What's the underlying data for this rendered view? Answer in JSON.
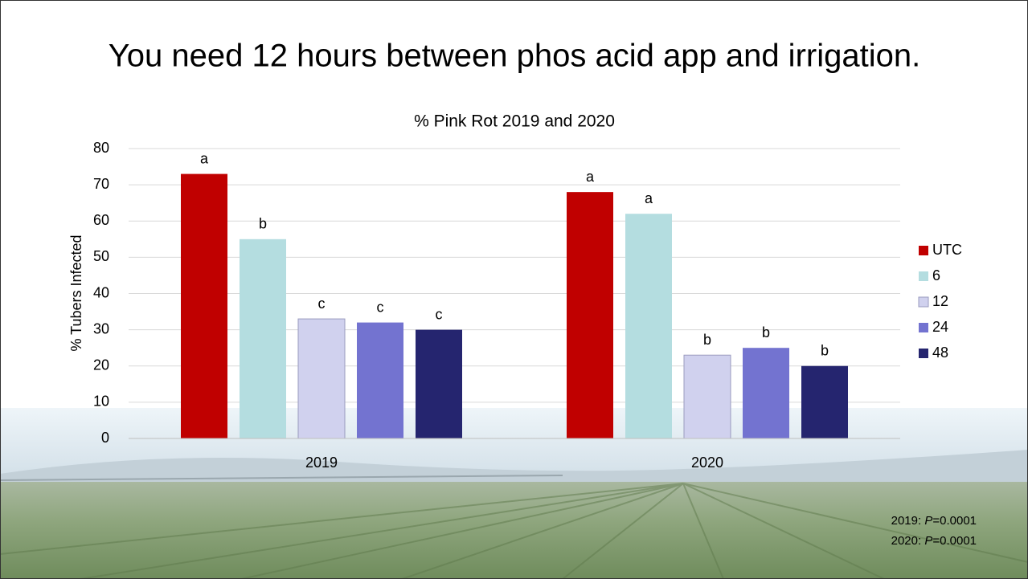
{
  "slide_title": "You need 12 hours between phos acid app and irrigation.",
  "chart_data": {
    "type": "bar",
    "title": "% Pink Rot 2019 and 2020",
    "y_label": "% Tubers Infected",
    "categories": [
      "2019",
      "2020"
    ],
    "series": [
      {
        "name": "UTC",
        "color": "#c00000",
        "values": [
          73,
          68
        ],
        "letters": [
          "a",
          "a"
        ]
      },
      {
        "name": "6",
        "color": "#b4dde0",
        "values": [
          55,
          62
        ],
        "letters": [
          "b",
          "a"
        ]
      },
      {
        "name": "12",
        "color": "#d0d1ee",
        "values": [
          33,
          23
        ],
        "letters": [
          "c",
          "b"
        ]
      },
      {
        "name": "24",
        "color": "#7373d0",
        "values": [
          32,
          25
        ],
        "letters": [
          "c",
          "b"
        ]
      },
      {
        "name": "48",
        "color": "#25256f",
        "values": [
          30,
          20
        ],
        "letters": [
          "c",
          "b"
        ]
      }
    ],
    "ylim": [
      0,
      80
    ],
    "yticks": [
      0,
      10,
      20,
      30,
      40,
      50,
      60,
      70,
      80
    ],
    "grid": true,
    "legend": "right"
  },
  "notes": [
    [
      "2019: ",
      "P",
      "=0.0001"
    ],
    [
      "2020: ",
      "P",
      "=0.0001"
    ]
  ]
}
